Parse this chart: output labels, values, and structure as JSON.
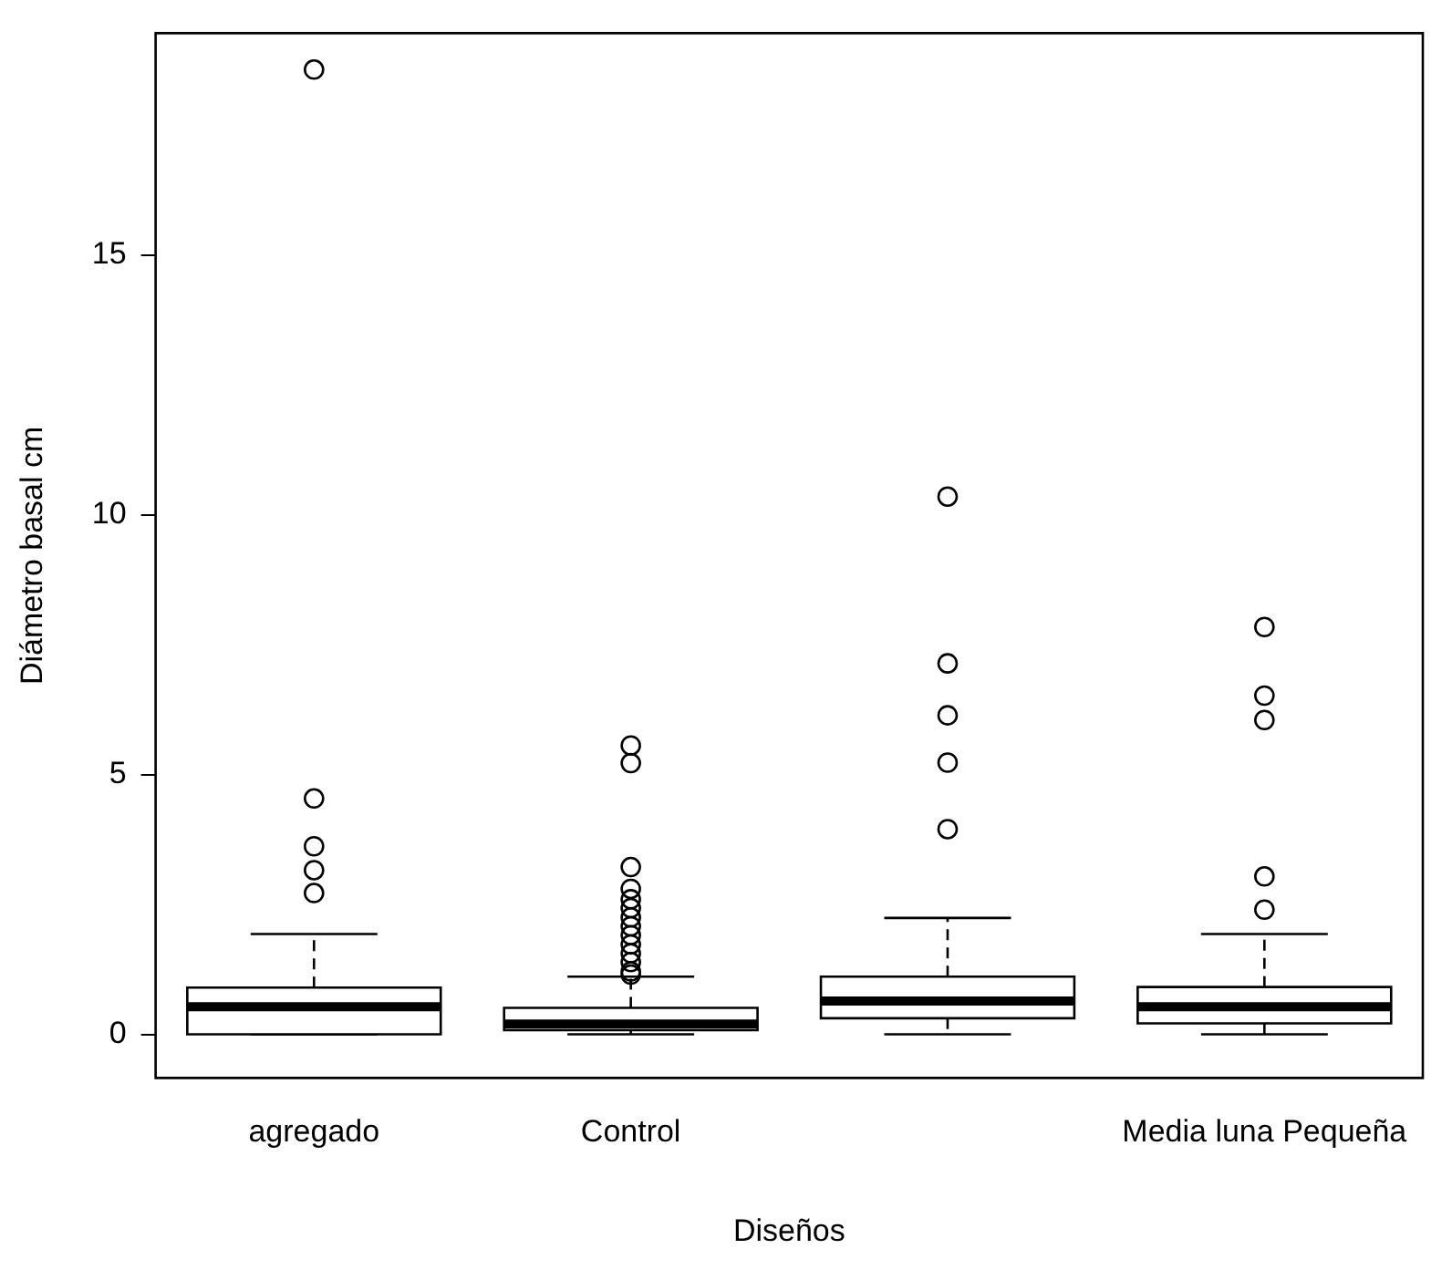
{
  "chart_data": {
    "type": "box",
    "xlabel": "Diseños",
    "ylabel": "Diámetro basal cm",
    "categories": [
      "agregado",
      "Control",
      null,
      "Media luna Pequeña"
    ],
    "boxes": [
      {
        "low": 0,
        "q1": 0,
        "median": 0.53,
        "q3": 0.9,
        "high": 1.93,
        "outliers": [
          18.57,
          4.54,
          3.62,
          3.16,
          2.72
        ]
      },
      {
        "low": 0,
        "q1": 0.08,
        "median": 0.2,
        "q3": 0.51,
        "high": 1.11,
        "outliers": [
          5.56,
          5.22,
          3.22,
          2.8,
          2.6,
          2.43,
          2.25,
          2.08,
          1.91,
          1.73,
          1.56,
          1.39,
          1.21,
          1.15
        ]
      },
      {
        "low": 0,
        "q1": 0.31,
        "median": 0.64,
        "q3": 1.11,
        "high": 2.24,
        "outliers": [
          10.35,
          7.14,
          6.14,
          5.23,
          3.95
        ]
      },
      {
        "low": 0,
        "q1": 0.21,
        "median": 0.53,
        "q3": 0.91,
        "high": 1.93,
        "outliers": [
          7.84,
          6.52,
          6.05,
          3.04,
          2.4
        ]
      }
    ],
    "ylim": [
      -0.84,
      19.27
    ],
    "yticks": [
      0,
      5,
      10,
      15
    ],
    "grid": false,
    "legend": false,
    "marker": "circle"
  }
}
